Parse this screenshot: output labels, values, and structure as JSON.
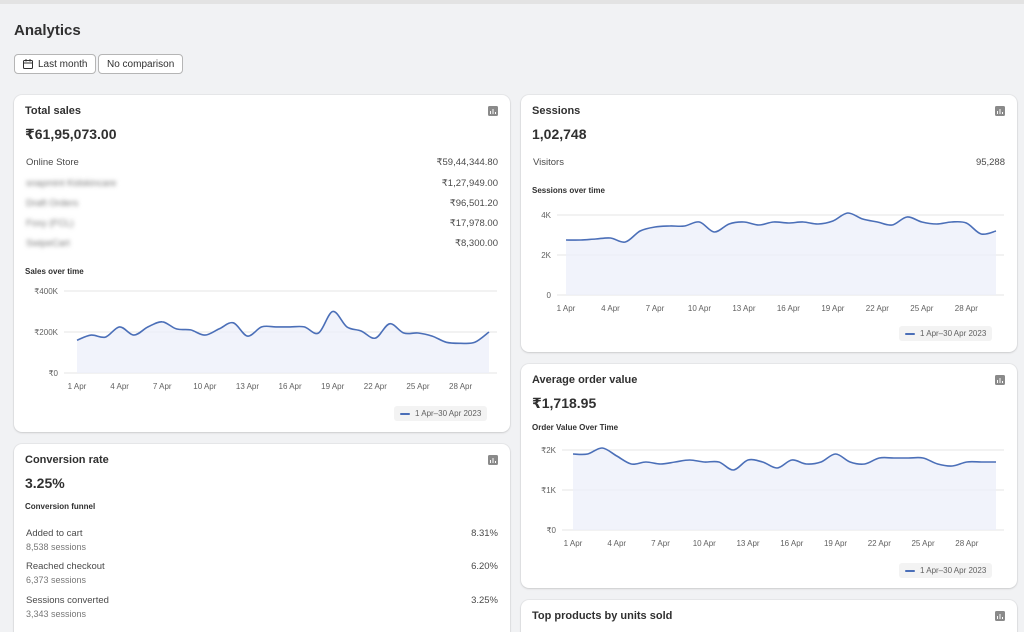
{
  "page": {
    "title": "Analytics"
  },
  "filters": {
    "date_label": "Last month",
    "comparison_label": "No comparison"
  },
  "total_sales": {
    "title": "Total sales",
    "value": "₹61,95,073.00",
    "rows": [
      {
        "label": "Online Store",
        "value": "₹59,44,344.80"
      },
      {
        "label": "snapmint Kidskincare",
        "value": "₹1,27,949.00"
      },
      {
        "label": "Draft Orders",
        "value": "₹96,501.20"
      },
      {
        "label": "Foxy (FCL)",
        "value": "₹17,978.00"
      },
      {
        "label": "SwipeCart",
        "value": "₹8,300.00"
      }
    ],
    "chart_label": "Sales over time",
    "legend": "1 Apr–30 Apr 2023"
  },
  "sessions": {
    "title": "Sessions",
    "value": "1,02,748",
    "rows": [
      {
        "label": "Visitors",
        "value": "95,288"
      }
    ],
    "chart_label": "Sessions over time",
    "legend": "1 Apr–30 Apr 2023"
  },
  "conversion": {
    "title": "Conversion rate",
    "value": "3.25%",
    "funnel_label": "Conversion funnel",
    "rows": [
      {
        "label": "Added to cart",
        "sub": "8,538 sessions",
        "value": "8.31%"
      },
      {
        "label": "Reached checkout",
        "sub": "6,373 sessions",
        "value": "6.20%"
      },
      {
        "label": "Sessions converted",
        "sub": "3,343 sessions",
        "value": "3.25%"
      }
    ]
  },
  "aov": {
    "title": "Average order value",
    "value": "₹1,718.95",
    "chart_label": "Order Value Over Time",
    "legend": "1 Apr–30 Apr 2023"
  },
  "top_products": {
    "title": "Top products by units sold"
  },
  "colors": {
    "line": "#4b6fb8",
    "fill": "#eef0fa",
    "grid": "#e6e6e6",
    "background": "#f1f2f4"
  },
  "icons": {
    "calendar": "calendar-icon",
    "chart": "bar-chart-icon"
  },
  "chart_data": [
    {
      "type": "line",
      "title": "Sales over time",
      "x": [
        "1 Apr",
        "2 Apr",
        "3 Apr",
        "4 Apr",
        "5 Apr",
        "6 Apr",
        "7 Apr",
        "8 Apr",
        "9 Apr",
        "10 Apr",
        "11 Apr",
        "12 Apr",
        "13 Apr",
        "14 Apr",
        "15 Apr",
        "16 Apr",
        "17 Apr",
        "18 Apr",
        "19 Apr",
        "20 Apr",
        "21 Apr",
        "22 Apr",
        "23 Apr",
        "24 Apr",
        "25 Apr",
        "26 Apr",
        "27 Apr",
        "28 Apr",
        "29 Apr",
        "30 Apr"
      ],
      "tick_labels": [
        "1 Apr",
        "4 Apr",
        "7 Apr",
        "10 Apr",
        "13 Apr",
        "16 Apr",
        "19 Apr",
        "22 Apr",
        "25 Apr",
        "28 Apr"
      ],
      "y_tick_labels": [
        "₹0",
        "₹200K",
        "₹400K"
      ],
      "ylim": [
        0,
        400000
      ],
      "series": [
        {
          "name": "1 Apr–30 Apr 2023",
          "values": [
            160000,
            185000,
            175000,
            225000,
            185000,
            225000,
            250000,
            215000,
            210000,
            185000,
            215000,
            245000,
            180000,
            225000,
            225000,
            225000,
            225000,
            195000,
            300000,
            225000,
            205000,
            170000,
            240000,
            195000,
            195000,
            180000,
            150000,
            145000,
            150000,
            200000
          ]
        }
      ],
      "grid": true
    },
    {
      "type": "line",
      "title": "Sessions over time",
      "x": [
        "1 Apr",
        "2 Apr",
        "3 Apr",
        "4 Apr",
        "5 Apr",
        "6 Apr",
        "7 Apr",
        "8 Apr",
        "9 Apr",
        "10 Apr",
        "11 Apr",
        "12 Apr",
        "13 Apr",
        "14 Apr",
        "15 Apr",
        "16 Apr",
        "17 Apr",
        "18 Apr",
        "19 Apr",
        "20 Apr",
        "21 Apr",
        "22 Apr",
        "23 Apr",
        "24 Apr",
        "25 Apr",
        "26 Apr",
        "27 Apr",
        "28 Apr",
        "29 Apr",
        "30 Apr"
      ],
      "tick_labels": [
        "1 Apr",
        "4 Apr",
        "7 Apr",
        "10 Apr",
        "13 Apr",
        "16 Apr",
        "19 Apr",
        "22 Apr",
        "25 Apr",
        "28 Apr"
      ],
      "y_tick_labels": [
        "0",
        "2K",
        "4K"
      ],
      "ylim": [
        0,
        4000
      ],
      "series": [
        {
          "name": "1 Apr–30 Apr 2023",
          "values": [
            2750,
            2750,
            2800,
            2850,
            2650,
            3200,
            3400,
            3450,
            3450,
            3650,
            3150,
            3550,
            3650,
            3500,
            3650,
            3600,
            3650,
            3550,
            3700,
            4100,
            3800,
            3650,
            3500,
            3900,
            3650,
            3550,
            3650,
            3600,
            3050,
            3200
          ]
        }
      ],
      "grid": true
    },
    {
      "type": "line",
      "title": "Order Value Over Time",
      "x": [
        "1 Apr",
        "2 Apr",
        "3 Apr",
        "4 Apr",
        "5 Apr",
        "6 Apr",
        "7 Apr",
        "8 Apr",
        "9 Apr",
        "10 Apr",
        "11 Apr",
        "12 Apr",
        "13 Apr",
        "14 Apr",
        "15 Apr",
        "16 Apr",
        "17 Apr",
        "18 Apr",
        "19 Apr",
        "20 Apr",
        "21 Apr",
        "22 Apr",
        "23 Apr",
        "24 Apr",
        "25 Apr",
        "26 Apr",
        "27 Apr",
        "28 Apr",
        "29 Apr",
        "30 Apr"
      ],
      "tick_labels": [
        "1 Apr",
        "4 Apr",
        "7 Apr",
        "10 Apr",
        "13 Apr",
        "16 Apr",
        "19 Apr",
        "22 Apr",
        "25 Apr",
        "28 Apr"
      ],
      "y_tick_labels": [
        "₹0",
        "₹1K",
        "₹2K"
      ],
      "ylim": [
        0,
        2000
      ],
      "series": [
        {
          "name": "1 Apr–30 Apr 2023",
          "values": [
            1900,
            1900,
            2050,
            1850,
            1650,
            1700,
            1650,
            1700,
            1750,
            1700,
            1700,
            1500,
            1750,
            1700,
            1550,
            1750,
            1650,
            1700,
            1900,
            1700,
            1650,
            1800,
            1800,
            1800,
            1800,
            1650,
            1600,
            1700,
            1700,
            1700
          ]
        }
      ],
      "grid": true
    }
  ]
}
